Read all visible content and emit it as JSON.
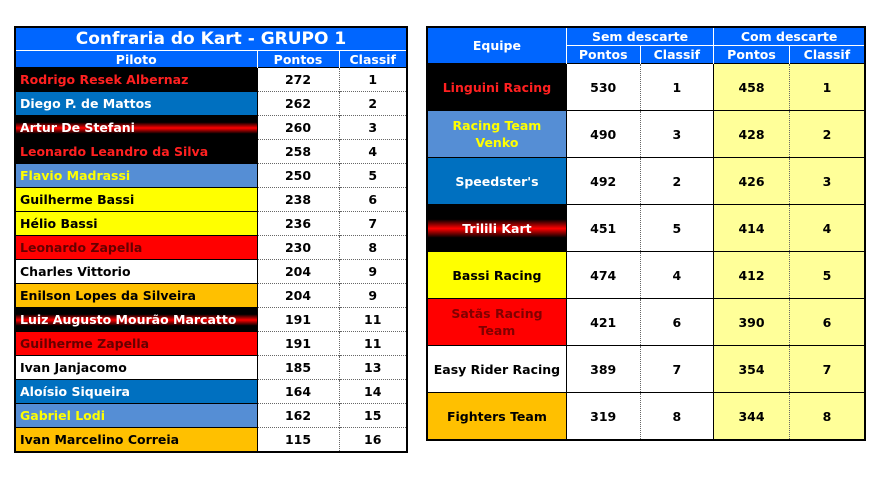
{
  "left_table": {
    "title": "Confraria do Kart - GRUPO 1",
    "headers": [
      "Piloto",
      "Pontos",
      "Classif"
    ],
    "rows": [
      {
        "name": "Rodrigo Resek Albernaz",
        "pontos": "272",
        "classif": "1",
        "style": "black"
      },
      {
        "name": "Diego P. de Mattos",
        "pontos": "262",
        "classif": "2",
        "style": "blue"
      },
      {
        "name": "Artur De Stefani",
        "pontos": "260",
        "classif": "3",
        "style": "blackred"
      },
      {
        "name": "Leonardo Leandro da Silva",
        "pontos": "258",
        "classif": "4",
        "style": "black"
      },
      {
        "name": "Flavio Madrassi",
        "pontos": "250",
        "classif": "5",
        "style": "lightblue"
      },
      {
        "name": "Guilherme Bassi",
        "pontos": "238",
        "classif": "6",
        "style": "yellow"
      },
      {
        "name": "Hélio Bassi",
        "pontos": "236",
        "classif": "7",
        "style": "yellow"
      },
      {
        "name": "Leonardo Zapella",
        "pontos": "230",
        "classif": "8",
        "style": "red"
      },
      {
        "name": "Charles Vittorio",
        "pontos": "204",
        "classif": "9",
        "style": "white"
      },
      {
        "name": "Enilson Lopes da Silveira",
        "pontos": "204",
        "classif": "9",
        "style": "orange"
      },
      {
        "name": "Luiz Augusto Mourão Marcatto",
        "pontos": "191",
        "classif": "11",
        "style": "blackred"
      },
      {
        "name": "Guilherme Zapella",
        "pontos": "191",
        "classif": "11",
        "style": "red"
      },
      {
        "name": "Ivan Janjacomo",
        "pontos": "185",
        "classif": "13",
        "style": "white"
      },
      {
        "name": "Aloísio Siqueira",
        "pontos": "164",
        "classif": "14",
        "style": "blue"
      },
      {
        "name": "Gabriel Lodi",
        "pontos": "162",
        "classif": "15",
        "style": "lightblue"
      },
      {
        "name": "Ivan Marcelino Correia",
        "pontos": "115",
        "classif": "16",
        "style": "orange"
      }
    ]
  },
  "right_table": {
    "header_team": "Equipe",
    "group_sem": "Sem descarte",
    "group_com": "Com descarte",
    "sub_headers": [
      "Pontos",
      "Classif",
      "Pontos",
      "Classif"
    ],
    "rows": [
      {
        "team": "Linguini Racing",
        "sem_pontos": "530",
        "sem_classif": "1",
        "com_pontos": "458",
        "com_classif": "1",
        "style": "black-team"
      },
      {
        "team": "Racing Team Venko",
        "sem_pontos": "490",
        "sem_classif": "3",
        "com_pontos": "428",
        "com_classif": "2",
        "style": "lightblue"
      },
      {
        "team": "Speedster's",
        "sem_pontos": "492",
        "sem_classif": "2",
        "com_pontos": "426",
        "com_classif": "3",
        "style": "blue"
      },
      {
        "team": "Trilili Kart",
        "sem_pontos": "451",
        "sem_classif": "5",
        "com_pontos": "414",
        "com_classif": "4",
        "style": "blackred2"
      },
      {
        "team": "Bassi Racing",
        "sem_pontos": "474",
        "sem_classif": "4",
        "com_pontos": "412",
        "com_classif": "5",
        "style": "yellow"
      },
      {
        "team": "Satãs Racing Team",
        "sem_pontos": "421",
        "sem_classif": "6",
        "com_pontos": "390",
        "com_classif": "6",
        "style": "red-team"
      },
      {
        "team": "Easy Rider Racing",
        "sem_pontos": "389",
        "sem_classif": "7",
        "com_pontos": "354",
        "com_classif": "7",
        "style": "white"
      },
      {
        "team": "Fighters Team",
        "sem_pontos": "319",
        "sem_classif": "8",
        "com_pontos": "344",
        "com_classif": "8",
        "style": "orange"
      }
    ]
  },
  "colors": {
    "header_blue": "#0066ff",
    "highlight_yellow": "#ffff99",
    "black": "#000000",
    "blue": "#0070c0",
    "light_blue": "#558ed5",
    "yellow": "#ffff00",
    "red": "#ff0000",
    "orange": "#ffc000"
  }
}
